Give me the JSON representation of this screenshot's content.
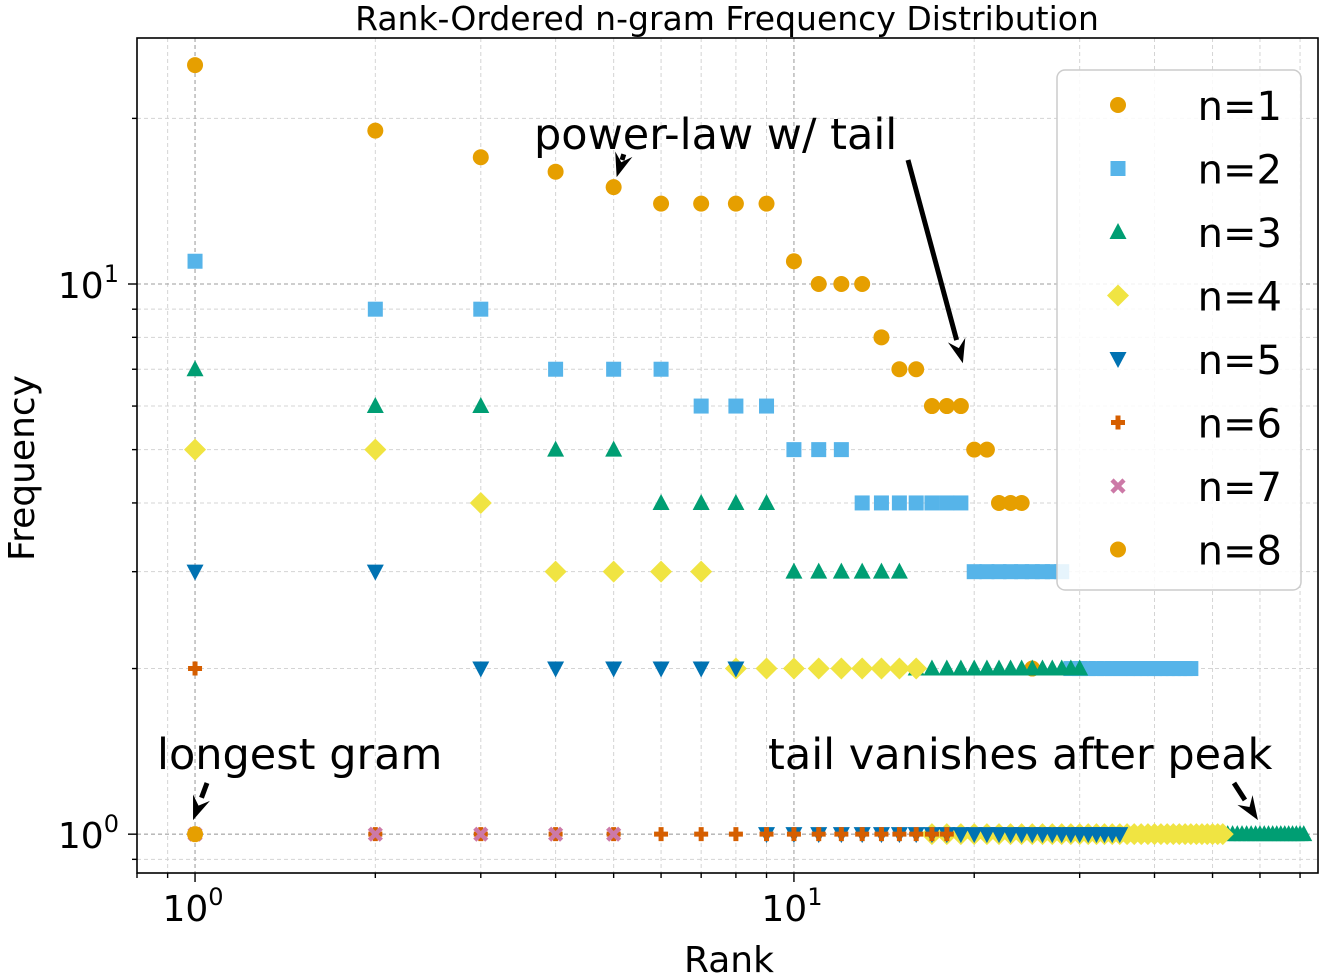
{
  "chart_data": {
    "type": "scatter",
    "title": "Rank-Ordered n-gram Frequency Distribution",
    "xlabel": "Rank",
    "ylabel": "Frequency",
    "xscale": "log",
    "yscale": "log",
    "xlim": [
      0.8,
      75
    ],
    "ylim": [
      0.85,
      28
    ],
    "grid": true,
    "legend_position": "top-right",
    "xticks": [
      {
        "base": "10",
        "exp": "0",
        "value": 1
      },
      {
        "base": "10",
        "exp": "1",
        "value": 10
      }
    ],
    "yticks": [
      {
        "base": "10",
        "exp": "0",
        "value": 1
      },
      {
        "base": "10",
        "exp": "1",
        "value": 10
      }
    ],
    "series": [
      {
        "name": "n=1",
        "marker": "circle",
        "color": "#e69f00",
        "points": [
          [
            1,
            25
          ],
          [
            2,
            19
          ],
          [
            3,
            17
          ],
          [
            4,
            16
          ],
          [
            5,
            15
          ],
          [
            6,
            14
          ],
          [
            7,
            14
          ],
          [
            8,
            14
          ],
          [
            9,
            14
          ],
          [
            10,
            11
          ],
          [
            11,
            10
          ],
          [
            12,
            10
          ],
          [
            13,
            10
          ],
          [
            14,
            8
          ],
          [
            15,
            7
          ],
          [
            16,
            7
          ],
          [
            17,
            6
          ],
          [
            18,
            6
          ],
          [
            19,
            6
          ],
          [
            20,
            5
          ],
          [
            21,
            5
          ],
          [
            22,
            4
          ],
          [
            23,
            4
          ],
          [
            24,
            4
          ],
          [
            25,
            2
          ]
        ]
      },
      {
        "name": "n=2",
        "marker": "square",
        "color": "#56b4e9",
        "points": [
          [
            1,
            11
          ],
          [
            2,
            9
          ],
          [
            3,
            9
          ],
          [
            4,
            7
          ],
          [
            5,
            7
          ],
          [
            6,
            7
          ],
          [
            7,
            6
          ],
          [
            8,
            6
          ],
          [
            9,
            6
          ],
          [
            10,
            5
          ],
          [
            11,
            5
          ],
          [
            12,
            5
          ],
          [
            13,
            4
          ],
          [
            14,
            4
          ],
          [
            15,
            4
          ],
          [
            16,
            4
          ],
          [
            17,
            4
          ],
          [
            18,
            4
          ],
          [
            19,
            4
          ],
          [
            20,
            3
          ],
          [
            21,
            3
          ],
          [
            22,
            3
          ],
          [
            23,
            3
          ],
          [
            24,
            3
          ],
          [
            25,
            3
          ],
          [
            26,
            3
          ],
          [
            27,
            3
          ],
          [
            28,
            3
          ],
          [
            29,
            2
          ],
          [
            30,
            2
          ],
          [
            31,
            2
          ],
          [
            32,
            2
          ],
          [
            33,
            2
          ],
          [
            34,
            2
          ],
          [
            35,
            2
          ],
          [
            36,
            2
          ],
          [
            37,
            2
          ],
          [
            38,
            2
          ],
          [
            39,
            2
          ],
          [
            40,
            2
          ],
          [
            41,
            2
          ],
          [
            42,
            2
          ],
          [
            43,
            2
          ],
          [
            44,
            2
          ],
          [
            45,
            2
          ],
          [
            46,
            2
          ]
        ]
      },
      {
        "name": "n=3",
        "marker": "triangle-up",
        "color": "#009e73",
        "points": [
          [
            1,
            7
          ],
          [
            2,
            6
          ],
          [
            3,
            6
          ],
          [
            4,
            5
          ],
          [
            5,
            5
          ],
          [
            6,
            4
          ],
          [
            7,
            4
          ],
          [
            8,
            4
          ],
          [
            9,
            4
          ],
          [
            10,
            3
          ],
          [
            11,
            3
          ],
          [
            12,
            3
          ],
          [
            13,
            3
          ],
          [
            14,
            3
          ],
          [
            15,
            3
          ],
          [
            16,
            2
          ],
          [
            17,
            2
          ],
          [
            18,
            2
          ],
          [
            19,
            2
          ],
          [
            20,
            2
          ],
          [
            21,
            2
          ],
          [
            22,
            2
          ],
          [
            23,
            2
          ],
          [
            24,
            2
          ],
          [
            25,
            2
          ],
          [
            26,
            2
          ],
          [
            27,
            2
          ],
          [
            28,
            2
          ],
          [
            29,
            2
          ],
          [
            30,
            2
          ],
          [
            53,
            1
          ],
          [
            54,
            1
          ],
          [
            55,
            1
          ],
          [
            56,
            1
          ],
          [
            57,
            1
          ],
          [
            58,
            1
          ],
          [
            59,
            1
          ],
          [
            60,
            1
          ],
          [
            61,
            1
          ],
          [
            62,
            1
          ],
          [
            63,
            1
          ],
          [
            64,
            1
          ],
          [
            65,
            1
          ],
          [
            66,
            1
          ],
          [
            67,
            1
          ],
          [
            68,
            1
          ],
          [
            69,
            1
          ],
          [
            70,
            1
          ],
          [
            71,
            1
          ]
        ]
      },
      {
        "name": "n=4",
        "marker": "diamond",
        "color": "#f0e442",
        "points": [
          [
            1,
            5
          ],
          [
            2,
            5
          ],
          [
            3,
            4
          ],
          [
            4,
            3
          ],
          [
            5,
            3
          ],
          [
            6,
            3
          ],
          [
            7,
            3
          ],
          [
            8,
            2
          ],
          [
            9,
            2
          ],
          [
            10,
            2
          ],
          [
            11,
            2
          ],
          [
            12,
            2
          ],
          [
            13,
            2
          ],
          [
            14,
            2
          ],
          [
            15,
            2
          ],
          [
            16,
            2
          ],
          [
            17,
            1
          ],
          [
            18,
            1
          ],
          [
            19,
            1
          ],
          [
            20,
            1
          ],
          [
            21,
            1
          ],
          [
            22,
            1
          ],
          [
            23,
            1
          ],
          [
            24,
            1
          ],
          [
            25,
            1
          ],
          [
            26,
            1
          ],
          [
            27,
            1
          ],
          [
            28,
            1
          ],
          [
            29,
            1
          ],
          [
            30,
            1
          ],
          [
            31,
            1
          ],
          [
            32,
            1
          ],
          [
            33,
            1
          ],
          [
            34,
            1
          ],
          [
            35,
            1
          ],
          [
            36,
            1
          ],
          [
            37,
            1
          ],
          [
            38,
            1
          ],
          [
            39,
            1
          ],
          [
            40,
            1
          ],
          [
            41,
            1
          ],
          [
            42,
            1
          ],
          [
            43,
            1
          ],
          [
            44,
            1
          ],
          [
            45,
            1
          ],
          [
            46,
            1
          ],
          [
            47,
            1
          ],
          [
            48,
            1
          ],
          [
            49,
            1
          ],
          [
            50,
            1
          ],
          [
            51,
            1
          ],
          [
            52,
            1
          ]
        ]
      },
      {
        "name": "n=5",
        "marker": "triangle-down",
        "color": "#0072b2",
        "points": [
          [
            1,
            3
          ],
          [
            2,
            3
          ],
          [
            3,
            2
          ],
          [
            4,
            2
          ],
          [
            5,
            2
          ],
          [
            6,
            2
          ],
          [
            7,
            2
          ],
          [
            8,
            2
          ],
          [
            9,
            1
          ],
          [
            10,
            1
          ],
          [
            11,
            1
          ],
          [
            12,
            1
          ],
          [
            13,
            1
          ],
          [
            14,
            1
          ],
          [
            15,
            1
          ],
          [
            16,
            1
          ],
          [
            17,
            1
          ],
          [
            18,
            1
          ],
          [
            19,
            1
          ],
          [
            20,
            1
          ],
          [
            21,
            1
          ],
          [
            22,
            1
          ],
          [
            23,
            1
          ],
          [
            24,
            1
          ],
          [
            25,
            1
          ],
          [
            26,
            1
          ],
          [
            27,
            1
          ],
          [
            28,
            1
          ],
          [
            29,
            1
          ],
          [
            30,
            1
          ],
          [
            31,
            1
          ],
          [
            32,
            1
          ],
          [
            33,
            1
          ],
          [
            34,
            1
          ],
          [
            35,
            1
          ]
        ]
      },
      {
        "name": "n=6",
        "marker": "plus",
        "color": "#d55e00",
        "points": [
          [
            1,
            2
          ],
          [
            2,
            1
          ],
          [
            3,
            1
          ],
          [
            4,
            1
          ],
          [
            5,
            1
          ],
          [
            6,
            1
          ],
          [
            7,
            1
          ],
          [
            8,
            1
          ],
          [
            9,
            1
          ],
          [
            10,
            1
          ],
          [
            11,
            1
          ],
          [
            12,
            1
          ],
          [
            13,
            1
          ],
          [
            14,
            1
          ],
          [
            15,
            1
          ],
          [
            16,
            1
          ],
          [
            17,
            1
          ],
          [
            18,
            1
          ]
        ]
      },
      {
        "name": "n=7",
        "marker": "x",
        "color": "#cc79a7",
        "points": [
          [
            1,
            1
          ],
          [
            2,
            1
          ],
          [
            3,
            1
          ],
          [
            4,
            1
          ],
          [
            5,
            1
          ]
        ]
      },
      {
        "name": "n=8",
        "marker": "circle",
        "color": "#e69f00",
        "points": [
          [
            1,
            1
          ]
        ]
      }
    ],
    "annotations": [
      {
        "text": "power-law w/ tail",
        "targets": [
          [
            5,
            15
          ],
          [
            19,
            7
          ]
        ]
      },
      {
        "text": "longest gram",
        "targets": [
          [
            1,
            1
          ]
        ]
      },
      {
        "text": "tail vanishes after peak",
        "targets": [
          [
            60,
            1
          ]
        ]
      }
    ]
  }
}
